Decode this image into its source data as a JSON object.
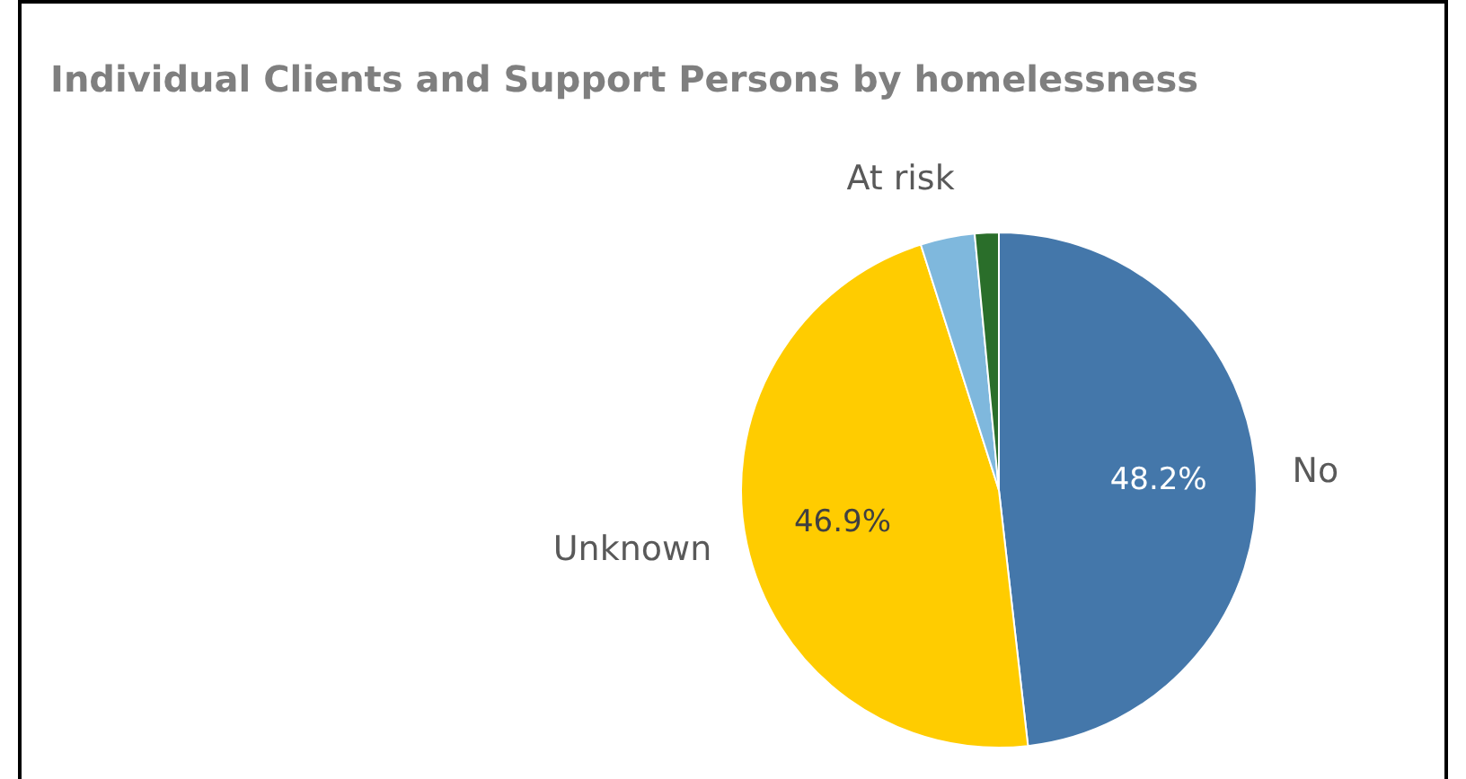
{
  "chart_data": {
    "type": "pie",
    "title": "Individual Clients and Support Persons by homelessness",
    "categories": [
      "No",
      "Unknown",
      "At risk",
      null
    ],
    "values": [
      48.2,
      46.9,
      3.4,
      1.5
    ],
    "colors": [
      "#4477aa",
      "#ffcc00",
      "#7fb8dd",
      "#2a6e2a"
    ],
    "value_labels": [
      "48.2%",
      "46.9%",
      null,
      null
    ],
    "legend": false
  }
}
